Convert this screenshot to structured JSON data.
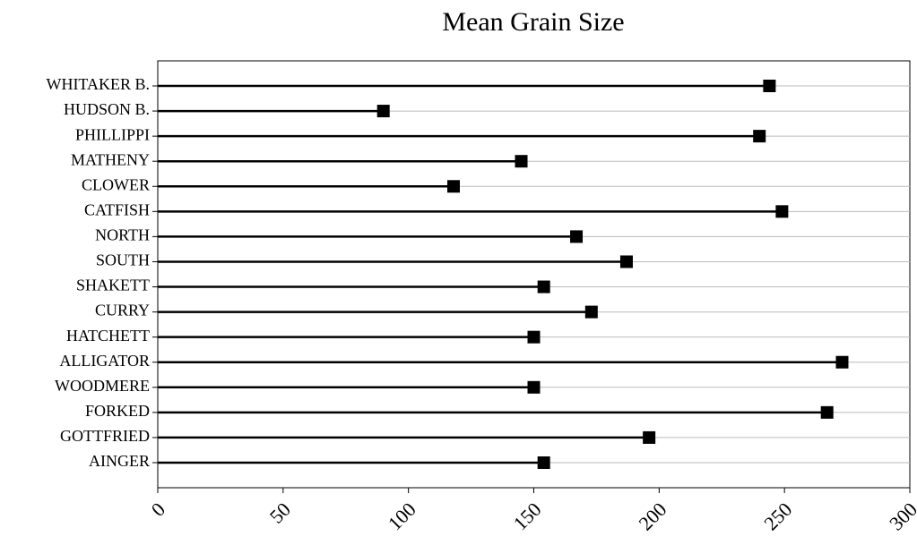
{
  "chart_data": {
    "type": "lollipop",
    "title": "Mean Grain Size",
    "categories": [
      "WHITAKER B.",
      "HUDSON B.",
      "PHILLIPPI",
      "MATHENY",
      "CLOWER",
      "CATFISH",
      "NORTH",
      "SOUTH",
      "SHAKETT",
      "CURRY",
      "HATCHETT",
      "ALLIGATOR",
      "WOODMERE",
      "FORKED",
      "GOTTFRIED",
      "AINGER"
    ],
    "values": [
      244,
      90,
      240,
      145,
      118,
      249,
      167,
      187,
      154,
      173,
      150,
      273,
      150,
      267,
      196,
      154
    ],
    "color": "#000000",
    "xlim": [
      0,
      300
    ],
    "xticks": [
      0,
      50,
      100,
      150,
      200,
      250,
      300
    ],
    "grid": true
  }
}
